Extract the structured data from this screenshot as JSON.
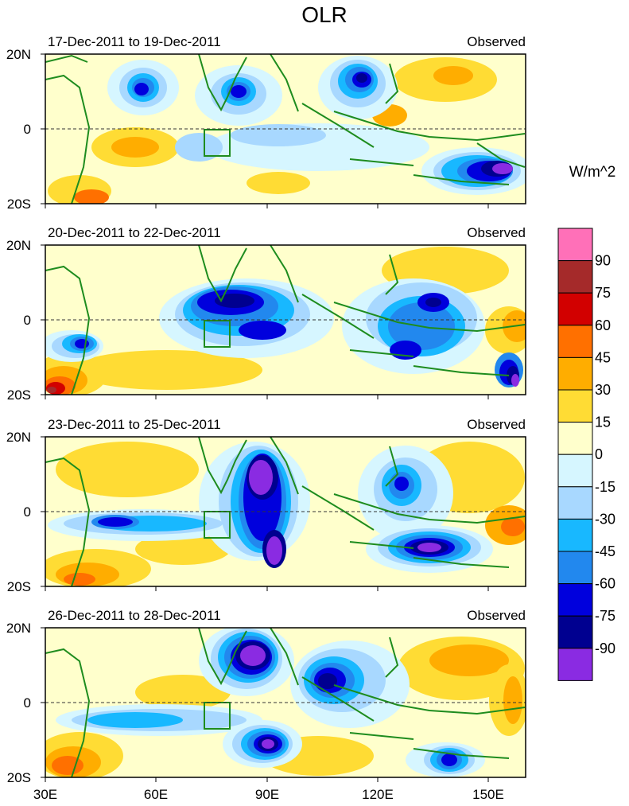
{
  "figure": {
    "title": "OLR",
    "units": "W/m^2",
    "tag": "Observed",
    "x_ticks": [
      "30E",
      "60E",
      "90E",
      "120E",
      "150E"
    ],
    "y_ticks": [
      "20N",
      "0",
      "20S"
    ]
  },
  "panels": [
    {
      "date_range": "17-Dec-2011 to 19-Dec-2011",
      "tag": "Observed"
    },
    {
      "date_range": "20-Dec-2011 to 22-Dec-2011",
      "tag": "Observed"
    },
    {
      "date_range": "23-Dec-2011 to 25-Dec-2011",
      "tag": "Observed"
    },
    {
      "date_range": "26-Dec-2011 to 28-Dec-2011",
      "tag": "Observed"
    }
  ],
  "colorbar": {
    "labels": [
      "90",
      "75",
      "60",
      "45",
      "30",
      "15",
      "0",
      "-15",
      "-30",
      "-45",
      "-60",
      "-75",
      "-90"
    ],
    "colors": [
      "#ff70b8",
      "#a52a2a",
      "#d20000",
      "#ff7000",
      "#ffad00",
      "#ffdc34",
      "#ffffcc",
      "#d6f6ff",
      "#a8d8ff",
      "#18b8ff",
      "#2288ee",
      "#0000dd",
      "#000090",
      "#8a2be2"
    ]
  },
  "map": {
    "lon_range": [
      30,
      160
    ],
    "lat_range": [
      -20,
      20
    ],
    "box_region": {
      "lon": [
        73,
        80
      ],
      "lat": [
        -7,
        0
      ]
    }
  }
}
